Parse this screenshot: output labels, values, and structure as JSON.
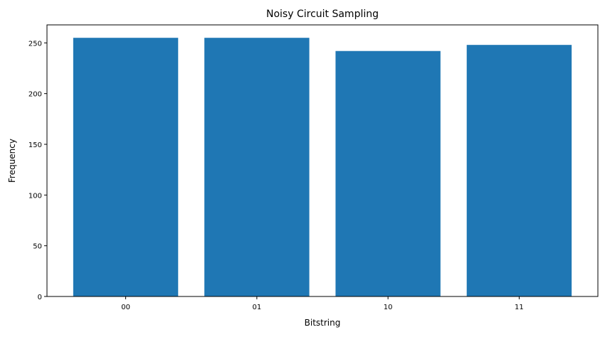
{
  "chart_data": {
    "type": "bar",
    "title": "Noisy Circuit Sampling",
    "xlabel": "Bitstring",
    "ylabel": "Frequency",
    "categories": [
      "00",
      "01",
      "10",
      "11"
    ],
    "values": [
      255,
      255,
      242,
      248
    ],
    "ylim": [
      0,
      267.75
    ],
    "yticks": [
      0,
      50,
      100,
      150,
      200,
      250
    ],
    "grid": false,
    "bar_color": "#1f77b4"
  }
}
